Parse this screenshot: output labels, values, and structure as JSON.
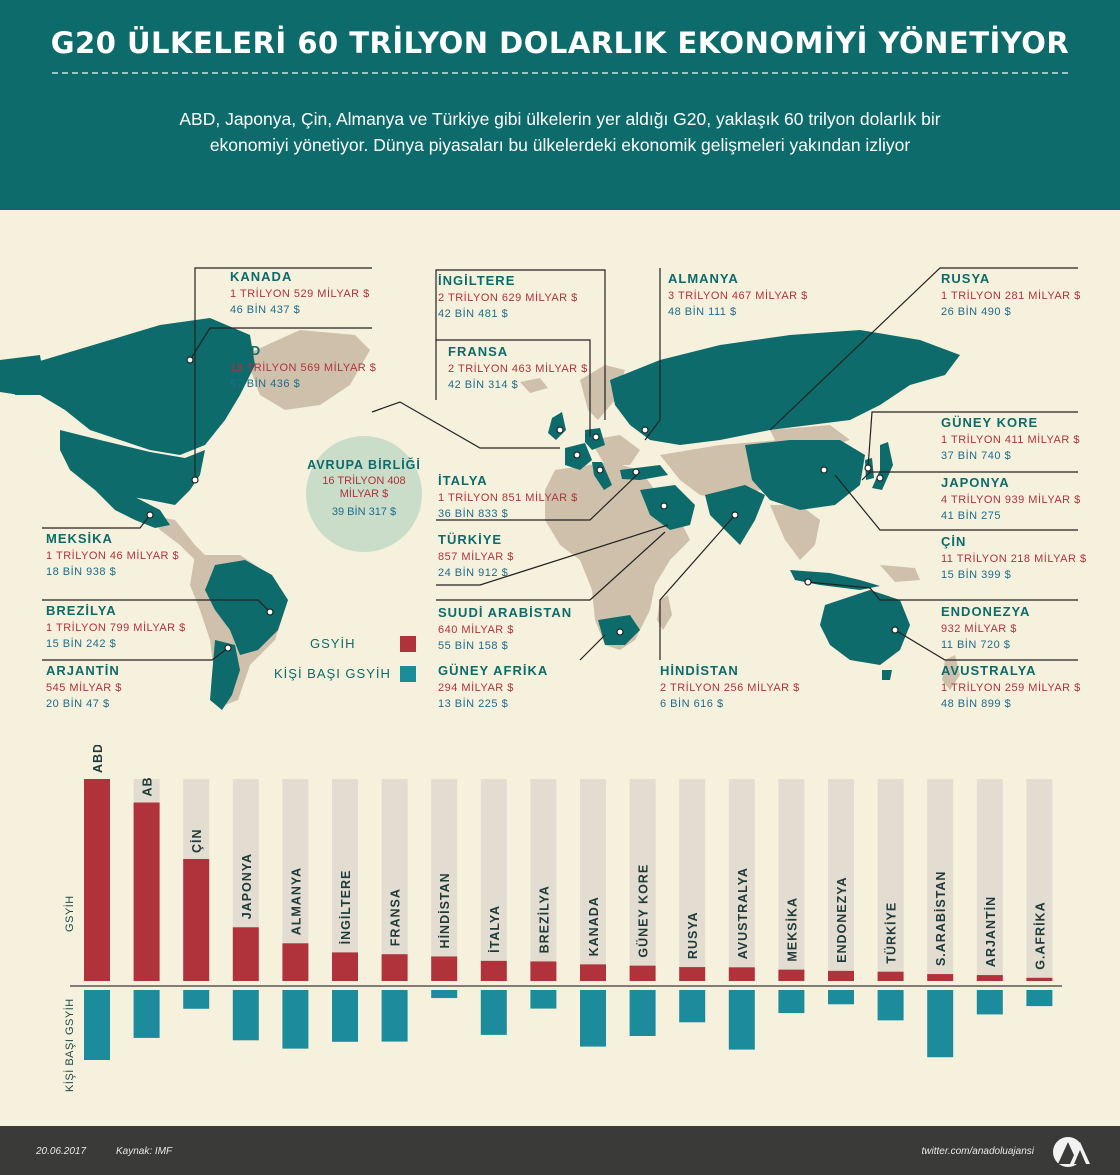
{
  "header": {
    "title": "G20 ÜLKELERİ 60 TRİLYON DOLARLIK EKONOMİYİ YÖNETİYOR",
    "subtitle": "ABD, Japonya, Çin, Almanya ve Türkiye gibi ülkelerin yer aldığı G20, yaklaşık 60 trilyon dolarlık bir ekonomiyi yönetiyor. Dünya piyasaları bu ülkelerdeki ekonomik gelişmeleri yakından izliyor"
  },
  "colors": {
    "header_bg": "#0d6b6b",
    "gsyih": "#b0333c",
    "kisi": "#1c8b9c",
    "track": "#e3dcd0",
    "land": "#cfc0ac",
    "g20_land": "#0d6b6b"
  },
  "countries": {
    "kanada": {
      "name": "KANADA",
      "gdp": "1 TRİLYON 529 MİLYAR $",
      "pc": "46 BİN 437 $"
    },
    "abd": {
      "name": "ABD",
      "gdp": "18 TRİLYON 569 MİLYAR $",
      "pc": "57 BİN 436 $"
    },
    "meksika": {
      "name": "MEKSİKA",
      "gdp": "1 TRİLYON 46 MİLYAR $",
      "pc": "18 BİN 938 $"
    },
    "brezilya": {
      "name": "BREZİLYA",
      "gdp": "1 TRİLYON 799 MİLYAR $",
      "pc": "15 BİN 242 $"
    },
    "arjantin": {
      "name": "ARJANTİN",
      "gdp": "545 MİLYAR $",
      "pc": "20 BİN 47 $"
    },
    "ingiltere": {
      "name": "İNGİLTERE",
      "gdp": "2 TRİLYON 629 MİLYAR $",
      "pc": "42 BİN 481 $"
    },
    "fransa": {
      "name": "FRANSA",
      "gdp": "2 TRİLYON 463 MİLYAR $",
      "pc": "42 BİN 314 $"
    },
    "italya": {
      "name": "İTALYA",
      "gdp": "1 TRİLYON 851 MİLYAR $",
      "pc": "36 BİN 833 $"
    },
    "turkiye": {
      "name": "TÜRKİYE",
      "gdp": "857 MİLYAR $",
      "pc": "24 BİN 912 $"
    },
    "suudi": {
      "name": "SUUDİ ARABİSTAN",
      "gdp": "640 MİLYAR $",
      "pc": "55 BİN 158 $"
    },
    "guney_afrika": {
      "name": "GÜNEY AFRİKA",
      "gdp": "294 MİLYAR $",
      "pc": "13 BİN 225 $"
    },
    "almanya": {
      "name": "ALMANYA",
      "gdp": "3 TRİLYON 467 MİLYAR $",
      "pc": "48 BİN 111 $"
    },
    "hindistan": {
      "name": "HİNDİSTAN",
      "gdp": "2 TRİLYON 256 MİLYAR $",
      "pc": "6 BİN 616 $"
    },
    "rusya": {
      "name": "RUSYA",
      "gdp": "1 TRİLYON 281 MİLYAR $",
      "pc": "26 BİN 490 $"
    },
    "guney_kore": {
      "name": "GÜNEY KORE",
      "gdp": "1 TRİLYON 411 MİLYAR $",
      "pc": "37 BİN 740 $"
    },
    "japonya": {
      "name": "JAPONYA",
      "gdp": "4 TRİLYON 939 MİLYAR $",
      "pc": "41 BİN 275"
    },
    "cin": {
      "name": "ÇİN",
      "gdp": "11 TRİLYON 218 MİLYAR $",
      "pc": "15 BİN 399 $"
    },
    "endonezya": {
      "name": "ENDONEZYA",
      "gdp": "932 MİLYAR $",
      "pc": "11 BİN 720 $"
    },
    "avustralya": {
      "name": "AVUSTRALYA",
      "gdp": "1 TRİLYON 259 MİLYAR $",
      "pc": "48 BİN 899 $"
    },
    "ab": {
      "name": "AVRUPA BİRLİĞİ",
      "gdp": "16 TRİLYON 408 MİLYAR $",
      "pc": "39 BİN 317 $"
    }
  },
  "legend": {
    "gsyih": "GSYİH",
    "kisi": "KİŞİ BAŞI GSYİH"
  },
  "chart_data": {
    "type": "bar",
    "categories": [
      "ABD",
      "AB",
      "ÇİN",
      "JAPONYA",
      "ALMANYA",
      "İNGİLTERE",
      "FRANSA",
      "HİNDİSTAN",
      "İTALYA",
      "BREZİLYA",
      "KANADA",
      "GÜNEY KORE",
      "RUSYA",
      "AVUSTRALYA",
      "MEKSİKA",
      "ENDONEZYA",
      "TÜRKİYE",
      "S.ARABİSTAN",
      "ARJANTİN",
      "G.AFRİKA"
    ],
    "series": [
      {
        "name": "GSYİH",
        "values": [
          18.569,
          16.408,
          11.218,
          4.939,
          3.467,
          2.629,
          2.463,
          2.256,
          1.851,
          1.799,
          1.529,
          1.411,
          1.281,
          1.259,
          1.046,
          0.932,
          0.857,
          0.64,
          0.545,
          0.294
        ]
      },
      {
        "name": "KİŞİ BAŞI GSYİH",
        "values": [
          57.436,
          39.317,
          15.399,
          41.275,
          48.111,
          42.481,
          42.314,
          6.616,
          36.833,
          15.242,
          46.437,
          37.74,
          26.49,
          48.899,
          18.938,
          11.72,
          24.912,
          55.158,
          20.047,
          13.225
        ]
      }
    ],
    "ylabel_top": "GSYİH",
    "ylabel_bottom": "KİŞİ BAŞI GSYİH"
  },
  "footer": {
    "date": "20.06.2017",
    "source": "Kaynak: IMF",
    "twitter": "twitter.com/anadoluajansi"
  }
}
